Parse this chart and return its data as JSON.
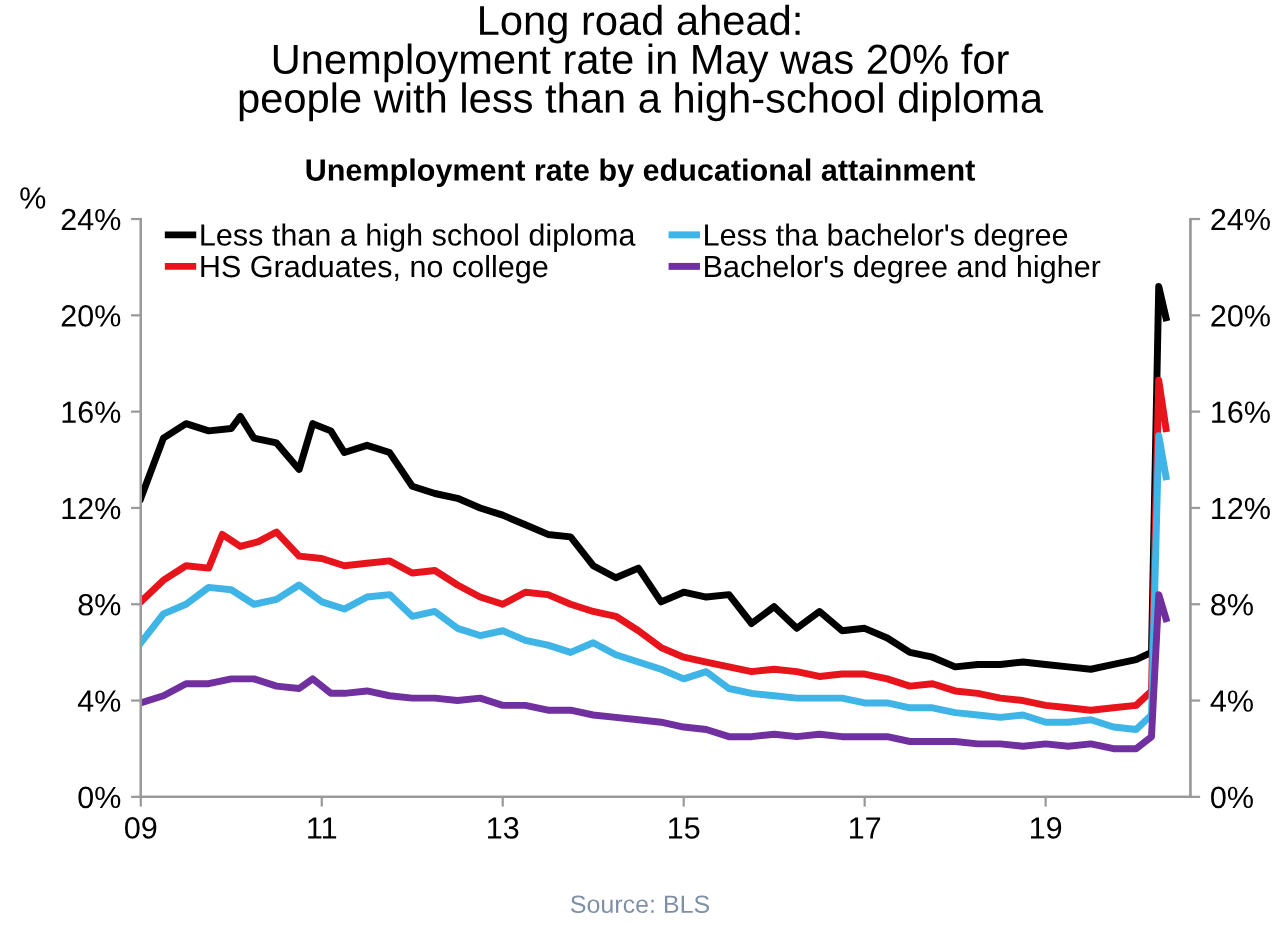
{
  "chart_data": {
    "type": "line",
    "title": "Long road ahead:\nUnemployment rate in May was 20% for\npeople with less than a high-school diploma",
    "subtitle": "Unemployment rate by educational attainment",
    "ylabel": "%",
    "annotations": [
      "Source: BLS"
    ],
    "series": [
      {
        "name": "Less than a high school diploma",
        "color": "#000000",
        "x": [
          2009.0,
          2009.25,
          2009.5,
          2009.75,
          2010.0,
          2010.1,
          2010.25,
          2010.5,
          2010.75,
          2010.9,
          2011.1,
          2011.25,
          2011.5,
          2011.75,
          2012.0,
          2012.25,
          2012.5,
          2012.75,
          2013.0,
          2013.25,
          2013.5,
          2013.75,
          2014.0,
          2014.25,
          2014.5,
          2014.75,
          2015.0,
          2015.25,
          2015.5,
          2015.75,
          2016.0,
          2016.25,
          2016.5,
          2016.75,
          2017.0,
          2017.25,
          2017.5,
          2017.75,
          2018.0,
          2018.25,
          2018.5,
          2018.75,
          2019.0,
          2019.25,
          2019.5,
          2019.75,
          2020.0,
          2020.17,
          2020.25,
          2020.33
        ],
        "values": [
          12.4,
          14.9,
          15.5,
          15.2,
          15.3,
          15.8,
          14.9,
          14.7,
          13.6,
          15.5,
          15.2,
          14.3,
          14.6,
          14.3,
          12.9,
          12.6,
          12.4,
          12.0,
          11.7,
          11.3,
          10.9,
          10.8,
          9.6,
          9.1,
          9.5,
          8.1,
          8.5,
          8.3,
          8.4,
          7.2,
          7.9,
          7.0,
          7.7,
          6.9,
          7.0,
          6.6,
          6.0,
          5.8,
          5.4,
          5.5,
          5.5,
          5.6,
          5.5,
          5.4,
          5.3,
          5.5,
          5.7,
          6.0,
          21.2,
          19.9
        ]
      },
      {
        "name": "HS Graduates, no college",
        "color": "#e8141c",
        "x": [
          2009.0,
          2009.25,
          2009.5,
          2009.75,
          2009.9,
          2010.1,
          2010.3,
          2010.5,
          2010.75,
          2011.0,
          2011.25,
          2011.5,
          2011.75,
          2012.0,
          2012.25,
          2012.5,
          2012.75,
          2013.0,
          2013.25,
          2013.5,
          2013.75,
          2014.0,
          2014.25,
          2014.5,
          2014.75,
          2015.0,
          2015.25,
          2015.5,
          2015.75,
          2016.0,
          2016.25,
          2016.5,
          2016.75,
          2017.0,
          2017.25,
          2017.5,
          2017.75,
          2018.0,
          2018.25,
          2018.5,
          2018.75,
          2019.0,
          2019.25,
          2019.5,
          2019.75,
          2020.0,
          2020.17,
          2020.25,
          2020.33
        ],
        "values": [
          8.1,
          9.0,
          9.6,
          9.5,
          10.9,
          10.4,
          10.6,
          11.0,
          10.0,
          9.9,
          9.6,
          9.7,
          9.8,
          9.3,
          9.4,
          8.8,
          8.3,
          8.0,
          8.5,
          8.4,
          8.0,
          7.7,
          7.5,
          6.9,
          6.2,
          5.8,
          5.6,
          5.4,
          5.2,
          5.3,
          5.2,
          5.0,
          5.1,
          5.1,
          4.9,
          4.6,
          4.7,
          4.4,
          4.3,
          4.1,
          4.0,
          3.8,
          3.7,
          3.6,
          3.7,
          3.8,
          4.4,
          17.3,
          15.3
        ]
      },
      {
        "name": "Less tha bachelor's degree",
        "color": "#3fb4e6",
        "x": [
          2009.0,
          2009.25,
          2009.5,
          2009.75,
          2010.0,
          2010.25,
          2010.5,
          2010.75,
          2011.0,
          2011.25,
          2011.5,
          2011.75,
          2012.0,
          2012.25,
          2012.5,
          2012.75,
          2013.0,
          2013.25,
          2013.5,
          2013.75,
          2014.0,
          2014.25,
          2014.5,
          2014.75,
          2015.0,
          2015.25,
          2015.5,
          2015.75,
          2016.0,
          2016.25,
          2016.5,
          2016.75,
          2017.0,
          2017.25,
          2017.5,
          2017.75,
          2018.0,
          2018.25,
          2018.5,
          2018.75,
          2019.0,
          2019.25,
          2019.5,
          2019.75,
          2020.0,
          2020.17,
          2020.25,
          2020.33
        ],
        "values": [
          6.4,
          7.6,
          8.0,
          8.7,
          8.6,
          8.0,
          8.2,
          8.8,
          8.1,
          7.8,
          8.3,
          8.4,
          7.5,
          7.7,
          7.0,
          6.7,
          6.9,
          6.5,
          6.3,
          6.0,
          6.4,
          5.9,
          5.6,
          5.3,
          4.9,
          5.2,
          4.5,
          4.3,
          4.2,
          4.1,
          4.1,
          4.1,
          3.9,
          3.9,
          3.7,
          3.7,
          3.5,
          3.4,
          3.3,
          3.4,
          3.1,
          3.1,
          3.2,
          2.9,
          2.8,
          3.4,
          15.0,
          13.3
        ]
      },
      {
        "name": "Bachelor's degree and higher",
        "color": "#7030a0",
        "x": [
          2009.0,
          2009.25,
          2009.5,
          2009.75,
          2010.0,
          2010.25,
          2010.5,
          2010.75,
          2010.9,
          2011.1,
          2011.25,
          2011.5,
          2011.75,
          2012.0,
          2012.25,
          2012.5,
          2012.75,
          2013.0,
          2013.25,
          2013.5,
          2013.75,
          2014.0,
          2014.25,
          2014.5,
          2014.75,
          2015.0,
          2015.25,
          2015.5,
          2015.75,
          2016.0,
          2016.25,
          2016.5,
          2016.75,
          2017.0,
          2017.25,
          2017.5,
          2017.75,
          2018.0,
          2018.25,
          2018.5,
          2018.75,
          2019.0,
          2019.25,
          2019.5,
          2019.75,
          2020.0,
          2020.17,
          2020.25,
          2020.33
        ],
        "values": [
          3.9,
          4.2,
          4.7,
          4.7,
          4.9,
          4.9,
          4.6,
          4.5,
          4.9,
          4.3,
          4.3,
          4.4,
          4.2,
          4.1,
          4.1,
          4.0,
          4.1,
          3.8,
          3.8,
          3.6,
          3.6,
          3.4,
          3.3,
          3.2,
          3.1,
          2.9,
          2.8,
          2.5,
          2.5,
          2.6,
          2.5,
          2.6,
          2.5,
          2.5,
          2.5,
          2.3,
          2.3,
          2.3,
          2.2,
          2.2,
          2.1,
          2.2,
          2.1,
          2.2,
          2.0,
          2.0,
          2.5,
          8.4,
          7.4
        ]
      }
    ],
    "xlim": [
      2009,
      2020.6
    ],
    "xticks": [
      {
        "value": 2009,
        "label": "09"
      },
      {
        "value": 2011,
        "label": "11"
      },
      {
        "value": 2013,
        "label": "13"
      },
      {
        "value": 2015,
        "label": "15"
      },
      {
        "value": 2017,
        "label": "17"
      },
      {
        "value": 2019,
        "label": "19"
      }
    ],
    "ylim": [
      0,
      24
    ],
    "yticks": [
      {
        "value": 0,
        "label": "0%"
      },
      {
        "value": 4,
        "label": "4%"
      },
      {
        "value": 8,
        "label": "8%"
      },
      {
        "value": 12,
        "label": "12%"
      },
      {
        "value": 16,
        "label": "16%"
      },
      {
        "value": 20,
        "label": "20%"
      },
      {
        "value": 24,
        "label": "24%"
      }
    ],
    "y2lim": [
      0,
      24
    ],
    "y2ticks": [
      {
        "value": 0,
        "label": "0%"
      },
      {
        "value": 4,
        "label": "4%"
      },
      {
        "value": 8,
        "label": "8%"
      },
      {
        "value": 12,
        "label": "12%"
      },
      {
        "value": 16,
        "label": "16%"
      },
      {
        "value": 20,
        "label": "20%"
      },
      {
        "value": 24,
        "label": "24%"
      }
    ],
    "legend": "top left",
    "grid": false,
    "marker": "none",
    "line_style": "solid"
  }
}
